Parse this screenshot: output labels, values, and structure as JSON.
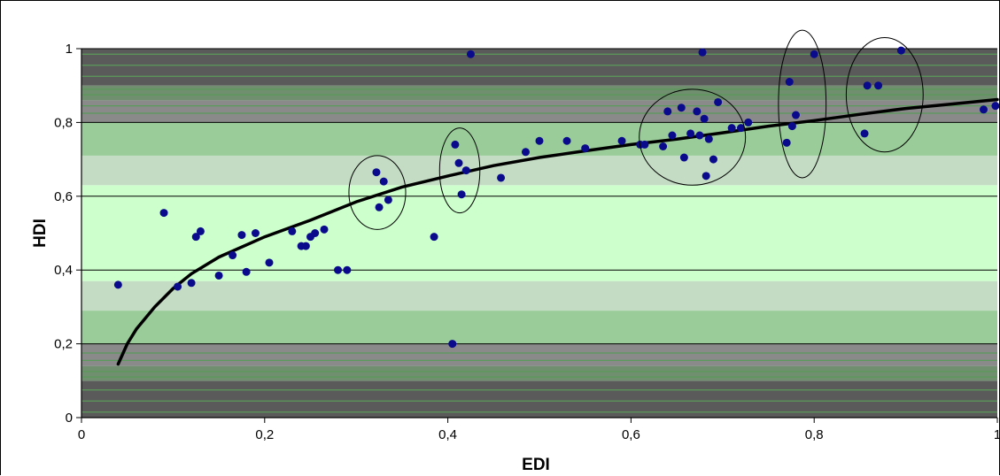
{
  "chart_data": {
    "type": "scatter",
    "title": "",
    "xlabel": "EDI",
    "ylabel": "HDI",
    "xlim": [
      0,
      1
    ],
    "ylim": [
      0,
      1
    ],
    "x_ticks": [
      "0",
      "0,2",
      "0,4",
      "0,6",
      "0,8",
      "1"
    ],
    "y_ticks": [
      "0",
      "0,2",
      "0,4",
      "0,6",
      "0,8",
      "1"
    ],
    "grid": "horizontal",
    "point_color": "#0a0a8c",
    "trend_color": "#000000",
    "background_bands": [
      {
        "from": 0.0,
        "to": 0.1,
        "color": "#5a5a5a"
      },
      {
        "from": 0.1,
        "to": 0.14,
        "color": "#6f8f6f"
      },
      {
        "from": 0.14,
        "to": 0.2,
        "color": "#8a8a8a"
      },
      {
        "from": 0.2,
        "to": 0.29,
        "color": "#99cc99"
      },
      {
        "from": 0.29,
        "to": 0.37,
        "color": "#c4dcc4"
      },
      {
        "from": 0.37,
        "to": 0.63,
        "color": "#ccffcc"
      },
      {
        "from": 0.63,
        "to": 0.71,
        "color": "#c4dcc4"
      },
      {
        "from": 0.71,
        "to": 0.8,
        "color": "#99cc99"
      },
      {
        "from": 0.8,
        "to": 0.86,
        "color": "#8a8a8a"
      },
      {
        "from": 0.86,
        "to": 0.9,
        "color": "#6f8f6f"
      },
      {
        "from": 0.9,
        "to": 1.0,
        "color": "#5a5a5a"
      }
    ],
    "points": [
      [
        0.04,
        0.36
      ],
      [
        0.09,
        0.555
      ],
      [
        0.105,
        0.355
      ],
      [
        0.12,
        0.365
      ],
      [
        0.125,
        0.49
      ],
      [
        0.13,
        0.505
      ],
      [
        0.15,
        0.385
      ],
      [
        0.165,
        0.44
      ],
      [
        0.175,
        0.495
      ],
      [
        0.18,
        0.395
      ],
      [
        0.19,
        0.5
      ],
      [
        0.205,
        0.42
      ],
      [
        0.23,
        0.505
      ],
      [
        0.24,
        0.465
      ],
      [
        0.245,
        0.465
      ],
      [
        0.25,
        0.49
      ],
      [
        0.255,
        0.5
      ],
      [
        0.265,
        0.51
      ],
      [
        0.28,
        0.4
      ],
      [
        0.29,
        0.4
      ],
      [
        0.322,
        0.665
      ],
      [
        0.325,
        0.57
      ],
      [
        0.33,
        0.64
      ],
      [
        0.335,
        0.59
      ],
      [
        0.385,
        0.49
      ],
      [
        0.405,
        0.2
      ],
      [
        0.408,
        0.74
      ],
      [
        0.412,
        0.69
      ],
      [
        0.415,
        0.605
      ],
      [
        0.42,
        0.67
      ],
      [
        0.425,
        0.985
      ],
      [
        0.458,
        0.65
      ],
      [
        0.485,
        0.72
      ],
      [
        0.5,
        0.75
      ],
      [
        0.53,
        0.75
      ],
      [
        0.55,
        0.73
      ],
      [
        0.59,
        0.75
      ],
      [
        0.61,
        0.74
      ],
      [
        0.615,
        0.74
      ],
      [
        0.635,
        0.735
      ],
      [
        0.64,
        0.83
      ],
      [
        0.645,
        0.765
      ],
      [
        0.655,
        0.84
      ],
      [
        0.658,
        0.705
      ],
      [
        0.665,
        0.77
      ],
      [
        0.672,
        0.83
      ],
      [
        0.675,
        0.765
      ],
      [
        0.678,
        0.99
      ],
      [
        0.68,
        0.81
      ],
      [
        0.682,
        0.655
      ],
      [
        0.685,
        0.755
      ],
      [
        0.69,
        0.7
      ],
      [
        0.695,
        0.855
      ],
      [
        0.71,
        0.785
      ],
      [
        0.72,
        0.785
      ],
      [
        0.728,
        0.8
      ],
      [
        0.77,
        0.745
      ],
      [
        0.773,
        0.91
      ],
      [
        0.776,
        0.79
      ],
      [
        0.78,
        0.82
      ],
      [
        0.8,
        0.985
      ],
      [
        0.855,
        0.77
      ],
      [
        0.858,
        0.9
      ],
      [
        0.87,
        0.9
      ],
      [
        0.895,
        0.995
      ],
      [
        0.985,
        0.835
      ],
      [
        0.998,
        0.845
      ]
    ],
    "trend_line": [
      [
        0.04,
        0.145
      ],
      [
        0.05,
        0.2
      ],
      [
        0.06,
        0.24
      ],
      [
        0.08,
        0.3
      ],
      [
        0.1,
        0.35
      ],
      [
        0.12,
        0.39
      ],
      [
        0.15,
        0.435
      ],
      [
        0.2,
        0.49
      ],
      [
        0.25,
        0.535
      ],
      [
        0.3,
        0.585
      ],
      [
        0.35,
        0.625
      ],
      [
        0.4,
        0.655
      ],
      [
        0.45,
        0.683
      ],
      [
        0.5,
        0.705
      ],
      [
        0.55,
        0.723
      ],
      [
        0.6,
        0.74
      ],
      [
        0.65,
        0.755
      ],
      [
        0.7,
        0.772
      ],
      [
        0.75,
        0.79
      ],
      [
        0.8,
        0.805
      ],
      [
        0.85,
        0.822
      ],
      [
        0.9,
        0.838
      ],
      [
        0.95,
        0.85
      ],
      [
        1.0,
        0.862
      ]
    ],
    "highlight_ellipses": [
      {
        "cx": 0.323,
        "cy": 0.61,
        "rx": 0.031,
        "ry": 0.1
      },
      {
        "cx": 0.413,
        "cy": 0.67,
        "rx": 0.022,
        "ry": 0.115
      },
      {
        "cx": 0.667,
        "cy": 0.76,
        "rx": 0.058,
        "ry": 0.13
      },
      {
        "cx": 0.787,
        "cy": 0.85,
        "rx": 0.026,
        "ry": 0.2
      },
      {
        "cx": 0.877,
        "cy": 0.875,
        "rx": 0.042,
        "ry": 0.155
      }
    ]
  }
}
